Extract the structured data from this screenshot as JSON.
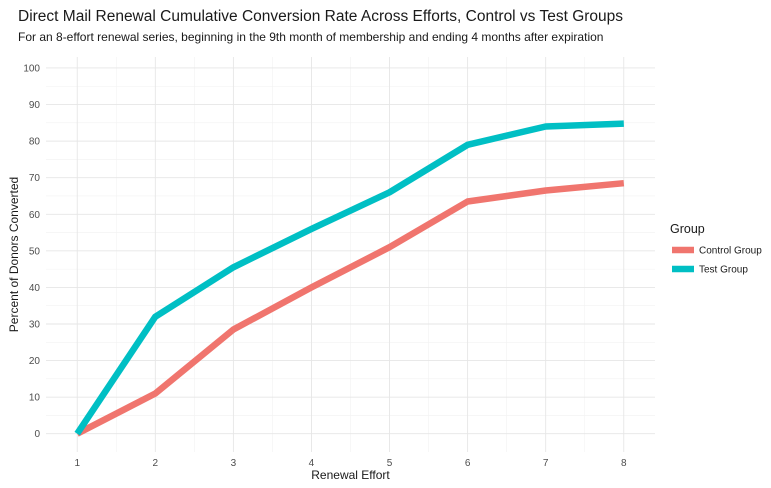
{
  "chart_data": {
    "type": "line",
    "title": "Direct Mail Renewal Cumulative Conversion Rate Across Efforts, Control vs Test Groups",
    "subtitle": "For an 8-effort renewal series, beginning in the 9th month of membership and ending 4 months after expiration",
    "xlabel": "Renewal Effort",
    "ylabel": "Percent of Donors Converted",
    "x": [
      1,
      2,
      3,
      4,
      5,
      6,
      7,
      8
    ],
    "xlim": [
      0.6,
      8.4
    ],
    "ylim": [
      -5,
      103
    ],
    "yticks": [
      0,
      10,
      20,
      30,
      40,
      50,
      60,
      70,
      80,
      90,
      100
    ],
    "grid": true,
    "legend": {
      "title": "Group",
      "position": "right"
    },
    "series": [
      {
        "name": "Control Group",
        "color": "#F0756E",
        "values": [
          0,
          11,
          28.5,
          40,
          51,
          63.5,
          66.5,
          68.5
        ]
      },
      {
        "name": "Test Group",
        "color": "#00BFC4",
        "values": [
          0,
          32,
          45.5,
          56,
          66,
          79,
          84,
          84.8
        ]
      }
    ]
  }
}
